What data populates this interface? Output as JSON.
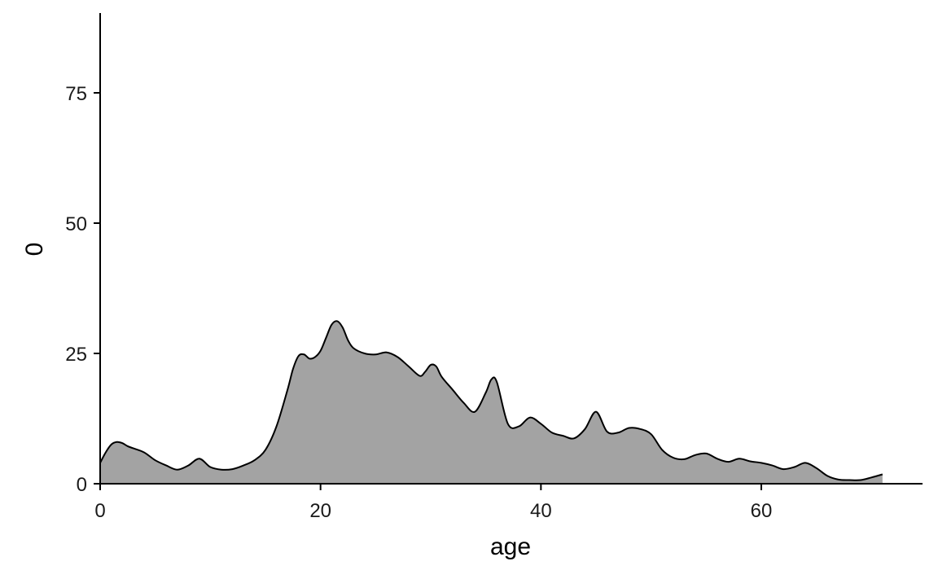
{
  "chart_data": {
    "type": "area",
    "title": "",
    "xlabel": "age",
    "ylabel": "0",
    "xlim": [
      0,
      75
    ],
    "ylim": [
      0,
      90
    ],
    "x_ticks": [
      0,
      20,
      40,
      60
    ],
    "y_ticks": [
      0,
      25,
      50,
      75
    ],
    "grid": false,
    "legend": "none",
    "fill_color": "#a3a3a3",
    "line_color": "#000000",
    "series": [
      {
        "x": [
          0,
          0.5,
          1,
          1.5,
          2,
          2.5,
          3,
          4,
          5,
          6,
          7,
          8,
          9,
          10,
          11,
          12,
          13,
          14,
          15,
          16,
          17,
          17.5,
          18,
          18.5,
          19,
          19.5,
          20,
          20.5,
          21,
          21.5,
          22,
          22.5,
          23,
          24,
          25,
          26,
          27,
          28,
          29,
          29.5,
          30,
          30.5,
          31,
          32,
          33,
          34,
          35,
          35.5,
          36,
          37,
          38,
          39,
          40,
          41,
          42,
          43,
          44,
          45,
          46,
          47,
          48,
          49,
          50,
          51,
          52,
          53,
          54,
          55,
          56,
          57,
          58,
          59,
          60,
          61,
          62,
          63,
          64,
          65,
          66,
          67,
          68,
          69,
          70,
          71
        ],
        "y": [
          4,
          6,
          7.5,
          8,
          7.8,
          7.2,
          6.8,
          6,
          4.5,
          3.5,
          2.7,
          3.5,
          4.8,
          3.2,
          2.7,
          2.8,
          3.5,
          4.5,
          6.5,
          11,
          18,
          22,
          24.5,
          24.8,
          24,
          24.3,
          25.5,
          28,
          30.5,
          31.2,
          30,
          27.5,
          26,
          25,
          24.8,
          25.2,
          24.3,
          22.5,
          20.7,
          21.5,
          22.8,
          22.5,
          20.5,
          18,
          15.5,
          13.8,
          17.5,
          20,
          19.5,
          11.5,
          11,
          12.7,
          11.5,
          9.8,
          9.2,
          8.7,
          10.5,
          13.8,
          10,
          9.8,
          10.7,
          10.5,
          9.5,
          6.5,
          5,
          4.7,
          5.5,
          5.8,
          4.8,
          4.2,
          4.8,
          4.3,
          4,
          3.5,
          2.8,
          3.2,
          4,
          3,
          1.5,
          0.8,
          0.7,
          0.7,
          1.2,
          1.8
        ]
      }
    ]
  }
}
